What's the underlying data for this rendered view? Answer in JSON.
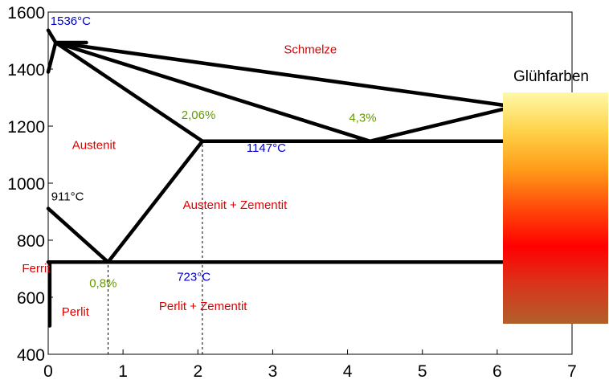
{
  "chart_data": {
    "type": "line",
    "xlim": [
      0,
      7
    ],
    "ylim": [
      400,
      1600
    ],
    "x_ticks": [
      0,
      1,
      2,
      3,
      4,
      5,
      6,
      7
    ],
    "y_ticks": [
      400,
      600,
      800,
      1000,
      1200,
      1400,
      1600
    ],
    "series": [
      {
        "values": [
          [
            0,
            1536
          ],
          [
            0.1,
            1493
          ],
          [
            6.67,
            1252
          ]
        ]
      },
      {
        "values": [
          [
            0,
            1390
          ],
          [
            0.1,
            1493
          ],
          [
            0.17,
            1493
          ],
          [
            0.51,
            1493
          ]
        ]
      },
      {
        "values": [
          [
            0.1,
            1493
          ],
          [
            2.06,
            1147
          ]
        ]
      },
      {
        "values": [
          [
            0.1,
            1493
          ],
          [
            4.3,
            1147
          ],
          [
            6.67,
            1297
          ]
        ]
      },
      {
        "values": [
          [
            2.06,
            1147
          ],
          [
            6.67,
            1147
          ]
        ]
      },
      {
        "values": [
          [
            0,
            911
          ],
          [
            0.8,
            723
          ]
        ]
      },
      {
        "values": [
          [
            0.8,
            723
          ],
          [
            2.06,
            1147
          ]
        ]
      },
      {
        "values": [
          [
            0,
            723
          ],
          [
            6.67,
            723
          ]
        ]
      },
      {
        "values": [
          [
            0.02,
            500
          ],
          [
            0.02,
            723
          ]
        ]
      }
    ],
    "guides": [
      {
        "x": 0.8,
        "y_from": 400,
        "y_to": 723
      },
      {
        "x": 2.06,
        "y_from": 400,
        "y_to": 1147
      }
    ],
    "annotations": [
      {
        "text": "1536°C",
        "x": 0.03,
        "y": 1555,
        "color": "#0000cc"
      },
      {
        "text": "Schmelze",
        "x": 3.15,
        "y": 1455,
        "color": "#dd0000"
      },
      {
        "text": "2,06%",
        "x": 1.78,
        "y": 1225,
        "color": "#669900"
      },
      {
        "text": "4,3%",
        "x": 4.02,
        "y": 1215,
        "color": "#669900"
      },
      {
        "text": "Austenit",
        "x": 0.32,
        "y": 1120,
        "color": "#dd0000"
      },
      {
        "text": "1147°C",
        "x": 2.65,
        "y": 1110,
        "color": "#0000cc"
      },
      {
        "text": "911°C",
        "x": 0.04,
        "y": 940,
        "color": "#000000"
      },
      {
        "text": "Austenit + Zementit",
        "x": 1.8,
        "y": 910,
        "color": "#dd0000"
      },
      {
        "text": "Ferrit",
        "x": -0.35,
        "y": 688,
        "color": "#dd0000"
      },
      {
        "text": "0,8%",
        "x": 0.55,
        "y": 635,
        "color": "#669900"
      },
      {
        "text": "723°C",
        "x": 1.72,
        "y": 658,
        "color": "#0000cc"
      },
      {
        "text": "Perlit",
        "x": 0.18,
        "y": 535,
        "color": "#dd0000"
      },
      {
        "text": "Perlit + Zementit",
        "x": 1.48,
        "y": 555,
        "color": "#dd0000"
      }
    ],
    "colorbar": {
      "title": "Glühfarben",
      "stops": [
        "#fff9a8",
        "#ffd24a",
        "#ff9c1a",
        "#ff4a0a",
        "#ff0000",
        "#d8361c",
        "#b0602a"
      ]
    }
  }
}
